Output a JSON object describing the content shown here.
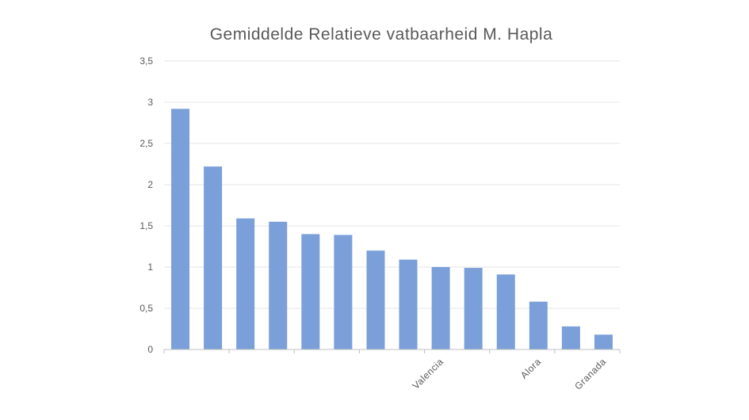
{
  "chart_data": {
    "type": "bar",
    "title": "Gemiddelde Relatieve vatbaarheid M. Hapla",
    "xlabel": "",
    "ylabel": "",
    "ylim": [
      0,
      3.5
    ],
    "yticks": [
      "0",
      "0,5",
      "1",
      "1,5",
      "2",
      "2,5",
      "3",
      "3,5"
    ],
    "grid": true,
    "legend": "none",
    "bar_color": "#7b9fd9",
    "categories": [
      "",
      "",
      "",
      "",
      "",
      "",
      "",
      "",
      "Valencia",
      "",
      "",
      "Alora",
      "",
      "Granada"
    ],
    "values": [
      2.92,
      2.22,
      1.59,
      1.55,
      1.4,
      1.39,
      1.2,
      1.09,
      1.0,
      0.99,
      0.91,
      0.58,
      0.28,
      0.18
    ]
  }
}
